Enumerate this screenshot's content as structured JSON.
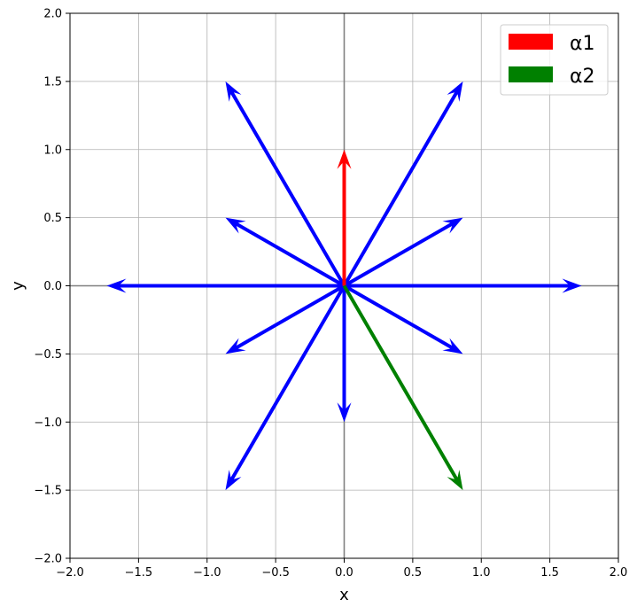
{
  "chart_data": {
    "type": "quiver",
    "title": "",
    "xlabel": "x",
    "ylabel": "y",
    "xlim": [
      -2.0,
      2.0
    ],
    "ylim": [
      -2.0,
      2.0
    ],
    "xticks": [
      -2.0,
      -1.5,
      -1.0,
      -0.5,
      0.0,
      0.5,
      1.0,
      1.5,
      2.0
    ],
    "yticks": [
      -2.0,
      -1.5,
      -1.0,
      -0.5,
      0.0,
      0.5,
      1.0,
      1.5,
      2.0
    ],
    "xtick_labels": [
      "−2.0",
      "−1.5",
      "−1.0",
      "−0.5",
      "0.0",
      "0.5",
      "1.0",
      "1.5",
      "2.0"
    ],
    "ytick_labels": [
      "−2.0",
      "−1.5",
      "−1.0",
      "−0.5",
      "0.0",
      "0.5",
      "1.0",
      "1.5",
      "2.0"
    ],
    "grid": true,
    "zero_lines": true,
    "legend_position": "top-right",
    "origin": [
      0,
      0
    ],
    "series": [
      {
        "name": "α1",
        "color": "#ff0000",
        "vectors": [
          [
            0,
            1
          ]
        ]
      },
      {
        "name": "α2",
        "color": "#008000",
        "vectors": [
          [
            0.866,
            -1.5
          ]
        ]
      },
      {
        "color": "#0000ff",
        "vectors": [
          [
            1.732,
            0
          ],
          [
            -1.732,
            0
          ],
          [
            0,
            -1
          ],
          [
            0.866,
            1.5
          ],
          [
            -0.866,
            1.5
          ],
          [
            -0.866,
            -1.5
          ],
          [
            0.866,
            0.5
          ],
          [
            -0.866,
            0.5
          ],
          [
            0.866,
            -0.5
          ],
          [
            -0.866,
            -0.5
          ]
        ]
      }
    ],
    "legend": [
      {
        "label": "α1",
        "color": "#ff0000"
      },
      {
        "label": "α2",
        "color": "#008000"
      }
    ]
  }
}
